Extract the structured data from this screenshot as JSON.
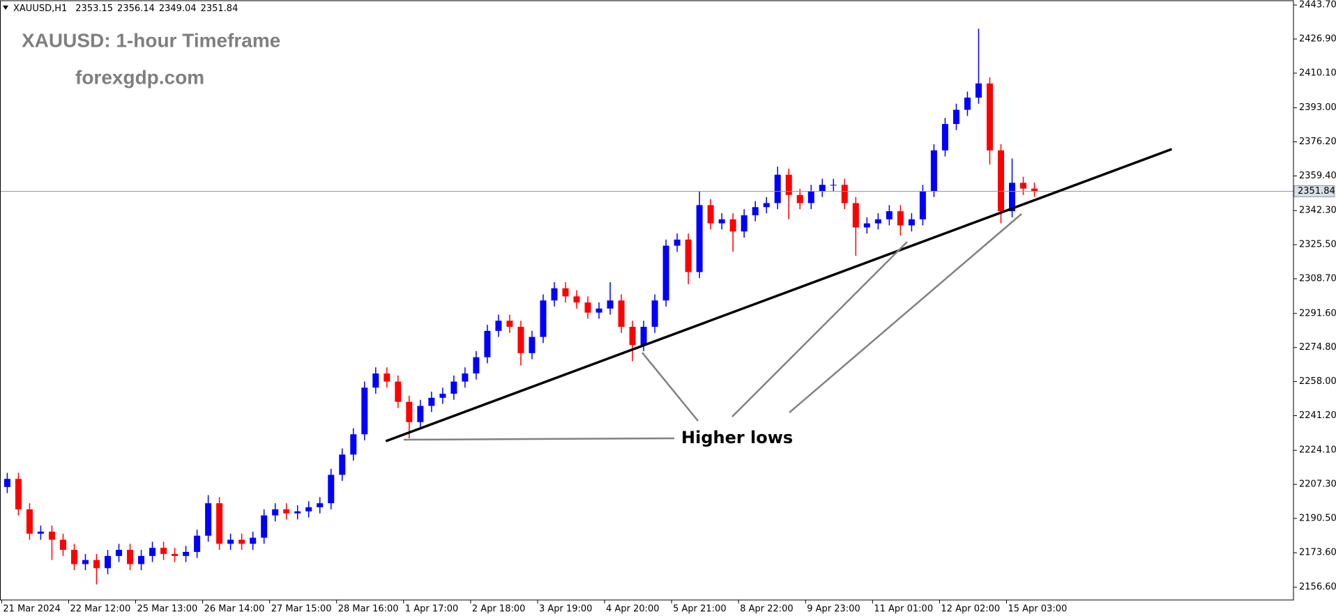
{
  "chart_data": {
    "type": "candlestick",
    "symbol": "XAUUSD,H1",
    "title": "XAUUSD: 1-hour Timeframe",
    "subtitle": "forexgdp.com",
    "annotation": "Higher lows",
    "up_color": "#0000ff",
    "down_color": "#ff0000",
    "price_line_color": "#8797ad",
    "trendline": {
      "x": [
        33.9,
        104.3
      ],
      "y": [
        2228.6,
        2372.6
      ]
    },
    "xlim": [
      -0.65,
      115.2
    ],
    "ylim": [
      2150.3,
      2445.8
    ],
    "xticks": [
      {
        "value": -0.5,
        "label": "21 Mar 2024"
      },
      {
        "value": 5.5,
        "label": "22 Mar 12:00"
      },
      {
        "value": 11.5,
        "label": "25 Mar 13:00"
      },
      {
        "value": 17.5,
        "label": "26 Mar 14:00"
      },
      {
        "value": 23.5,
        "label": "27 Mar 15:00"
      },
      {
        "value": 29.5,
        "label": "28 Mar 16:00"
      },
      {
        "value": 35.5,
        "label": "1 Apr 17:00"
      },
      {
        "value": 41.5,
        "label": "2 Apr 18:00"
      },
      {
        "value": 47.5,
        "label": "3 Apr 19:00"
      },
      {
        "value": 53.5,
        "label": "4 Apr 20:00"
      },
      {
        "value": 59.5,
        "label": "5 Apr 21:00"
      },
      {
        "value": 65.5,
        "label": "8 Apr 22:00"
      },
      {
        "value": 71.5,
        "label": "9 Apr 23:00"
      },
      {
        "value": 77.5,
        "label": "11 Apr 01:00"
      },
      {
        "value": 83.5,
        "label": "12 Apr 02:00"
      },
      {
        "value": 89.5,
        "label": "15 Apr 03:00"
      }
    ],
    "yticks": [
      {
        "value": 2443.7,
        "label": "2443.70"
      },
      {
        "value": 2426.9,
        "label": "2426.90"
      },
      {
        "value": 2410.1,
        "label": "2410.10"
      },
      {
        "value": 2393,
        "label": "2393.00"
      },
      {
        "value": 2376.2,
        "label": "2376.20"
      },
      {
        "value": 2359.4,
        "label": "2359.40"
      },
      {
        "value": 2342.3,
        "label": "2342.30"
      },
      {
        "value": 2325.5,
        "label": "2325.50"
      },
      {
        "value": 2308.7,
        "label": "2308.70"
      },
      {
        "value": 2291.6,
        "label": "2291.60"
      },
      {
        "value": 2274.8,
        "label": "2274.80"
      },
      {
        "value": 2258,
        "label": "2258.00"
      },
      {
        "value": 2241.2,
        "label": "2241.20"
      },
      {
        "value": 2224.1,
        "label": "2224.10"
      },
      {
        "value": 2207.3,
        "label": "2207.30"
      },
      {
        "value": 2190.5,
        "label": "2190.50"
      },
      {
        "value": 2173.6,
        "label": "2173.60"
      },
      {
        "value": 2156.6,
        "label": "2156.60"
      }
    ],
    "open": [
      2206,
      2210,
      2195,
      2183,
      2184,
      2180,
      2175,
      2168,
      2170,
      2166,
      2172,
      2175,
      2168,
      2172,
      2176,
      2173,
      2172,
      2174,
      2182,
      2198,
      2178,
      2180,
      2178,
      2181,
      2192,
      2195,
      2193,
      2194,
      2196,
      2198,
      2212,
      2222,
      2232,
      2255,
      2262,
      2258,
      2248,
      2238,
      2246,
      2250,
      2252,
      2258,
      2262,
      2270,
      2283,
      2288,
      2285,
      2272,
      2280,
      2298,
      2304,
      2300,
      2297,
      2292,
      2294,
      2298,
      2285,
      2276,
      2285,
      2298,
      2325,
      2328,
      2312,
      2345,
      2336,
      2338,
      2332,
      2340,
      2344,
      2346,
      2360,
      2350,
      2346,
      2352,
      2355,
      2355,
      2346,
      2334,
      2336,
      2338,
      2342,
      2335,
      2338,
      2352,
      2372,
      2385,
      2392,
      2398,
      2405,
      2372,
      2342,
      2356,
      2353.15
    ],
    "high": [
      2213,
      2213,
      2198,
      2187,
      2187,
      2183,
      2178,
      2173,
      2173,
      2175,
      2178,
      2178,
      2175,
      2179,
      2179,
      2176,
      2177,
      2185,
      2202,
      2201,
      2183,
      2183,
      2184,
      2195,
      2198,
      2198,
      2197,
      2199,
      2201,
      2215,
      2225,
      2235,
      2258,
      2265,
      2265,
      2261,
      2251,
      2249,
      2253,
      2255,
      2261,
      2265,
      2273,
      2286,
      2291,
      2291,
      2288,
      2283,
      2301,
      2307,
      2307,
      2303,
      2300,
      2297,
      2307,
      2301,
      2288,
      2288,
      2301,
      2328,
      2331,
      2331,
      2352,
      2348,
      2341,
      2341,
      2343,
      2347,
      2349,
      2364,
      2363,
      2353,
      2355,
      2358,
      2358,
      2358,
      2349,
      2339,
      2341,
      2345,
      2345,
      2341,
      2355,
      2375,
      2388,
      2395,
      2401,
      2432,
      2408,
      2375,
      2368,
      2359,
      2356.14
    ],
    "low": [
      2203,
      2192,
      2180,
      2180,
      2170,
      2172,
      2165,
      2165,
      2158,
      2163,
      2169,
      2165,
      2165,
      2169,
      2170,
      2169,
      2169,
      2171,
      2179,
      2175,
      2175,
      2175,
      2175,
      2178,
      2189,
      2190,
      2190,
      2191,
      2193,
      2195,
      2209,
      2219,
      2229,
      2252,
      2255,
      2245,
      2230,
      2235,
      2243,
      2247,
      2249,
      2255,
      2259,
      2267,
      2280,
      2282,
      2266,
      2269,
      2277,
      2295,
      2297,
      2294,
      2289,
      2289,
      2291,
      2282,
      2268,
      2273,
      2282,
      2295,
      2322,
      2306,
      2309,
      2333,
      2333,
      2322,
      2329,
      2337,
      2341,
      2343,
      2338,
      2343,
      2343,
      2349,
      2352,
      2343,
      2320,
      2331,
      2333,
      2335,
      2330,
      2332,
      2335,
      2349,
      2369,
      2382,
      2389,
      2395,
      2365,
      2336,
      2339,
      2350,
      2349.04
    ],
    "close": [
      2210,
      2195,
      2183,
      2184,
      2180,
      2175,
      2168,
      2170,
      2166,
      2172,
      2175,
      2168,
      2172,
      2176,
      2173,
      2172,
      2174,
      2182,
      2198,
      2178,
      2180,
      2178,
      2181,
      2192,
      2195,
      2193,
      2194,
      2196,
      2198,
      2212,
      2222,
      2232,
      2255,
      2262,
      2258,
      2248,
      2238,
      2246,
      2250,
      2252,
      2258,
      2262,
      2270,
      2283,
      2288,
      2285,
      2272,
      2280,
      2298,
      2304,
      2300,
      2297,
      2292,
      2294,
      2298,
      2285,
      2276,
      2285,
      2298,
      2325,
      2328,
      2312,
      2345,
      2336,
      2338,
      2332,
      2340,
      2344,
      2346,
      2360,
      2350,
      2346,
      2352,
      2355,
      2355,
      2346,
      2334,
      2336,
      2338,
      2342,
      2335,
      2338,
      2352,
      2372,
      2385,
      2392,
      2398,
      2405,
      2372,
      2342,
      2356,
      2353.15,
      2351.84
    ]
  }
}
